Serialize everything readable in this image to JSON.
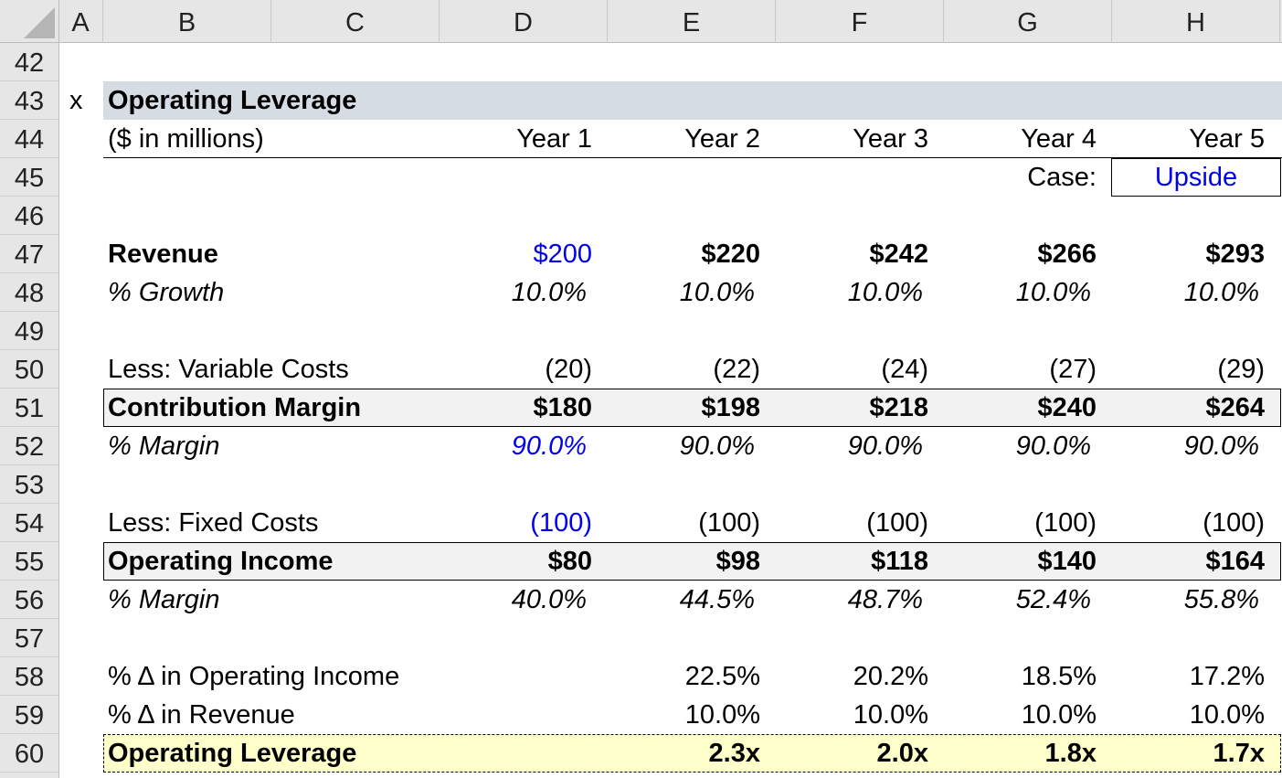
{
  "columns": [
    "A",
    "B",
    "C",
    "D",
    "E",
    "F",
    "G",
    "H"
  ],
  "rows": [
    "42",
    "43",
    "44",
    "45",
    "46",
    "47",
    "48",
    "49",
    "50",
    "51",
    "52",
    "53",
    "54",
    "55",
    "56",
    "57",
    "58",
    "59",
    "60"
  ],
  "marker": "x",
  "title": "Operating Leverage",
  "units": "($ in millions)",
  "years": [
    "Year 1",
    "Year 2",
    "Year 3",
    "Year 4",
    "Year 5"
  ],
  "case": {
    "label": "Case:",
    "value": "Upside"
  },
  "revenue": {
    "label": "Revenue",
    "values": [
      "$200",
      "$220",
      "$242",
      "$266",
      "$293"
    ]
  },
  "growth": {
    "label": "% Growth",
    "values": [
      "10.0%",
      "10.0%",
      "10.0%",
      "10.0%",
      "10.0%"
    ]
  },
  "variable_costs": {
    "label": "Less: Variable Costs",
    "values": [
      "(20)",
      "(22)",
      "(24)",
      "(27)",
      "(29)"
    ]
  },
  "contribution_margin": {
    "label": "Contribution Margin",
    "values": [
      "$180",
      "$198",
      "$218",
      "$240",
      "$264"
    ]
  },
  "cm_margin": {
    "label": "% Margin",
    "values": [
      "90.0%",
      "90.0%",
      "90.0%",
      "90.0%",
      "90.0%"
    ]
  },
  "fixed_costs": {
    "label": "Less: Fixed Costs",
    "values": [
      "(100)",
      "(100)",
      "(100)",
      "(100)",
      "(100)"
    ]
  },
  "operating_income": {
    "label": "Operating Income",
    "values": [
      "$80",
      "$98",
      "$118",
      "$140",
      "$164"
    ]
  },
  "oi_margin": {
    "label": "% Margin",
    "values": [
      "40.0%",
      "44.5%",
      "48.7%",
      "52.4%",
      "55.8%"
    ]
  },
  "pct_change_oi": {
    "label": "% Δ in Operating Income",
    "values": [
      "22.5%",
      "20.2%",
      "18.5%",
      "17.2%"
    ]
  },
  "pct_change_revenue": {
    "label": "% Δ in Revenue",
    "values": [
      "10.0%",
      "10.0%",
      "10.0%",
      "10.0%"
    ]
  },
  "operating_leverage": {
    "label": "Operating Leverage",
    "values": [
      "2.3x",
      "2.0x",
      "1.8x",
      "1.7x"
    ]
  },
  "colors": {
    "input_blue": "#0000ee",
    "title_band": "#d6dce4",
    "total_fill": "#f2f2f2",
    "result_fill": "#ffffcc"
  }
}
